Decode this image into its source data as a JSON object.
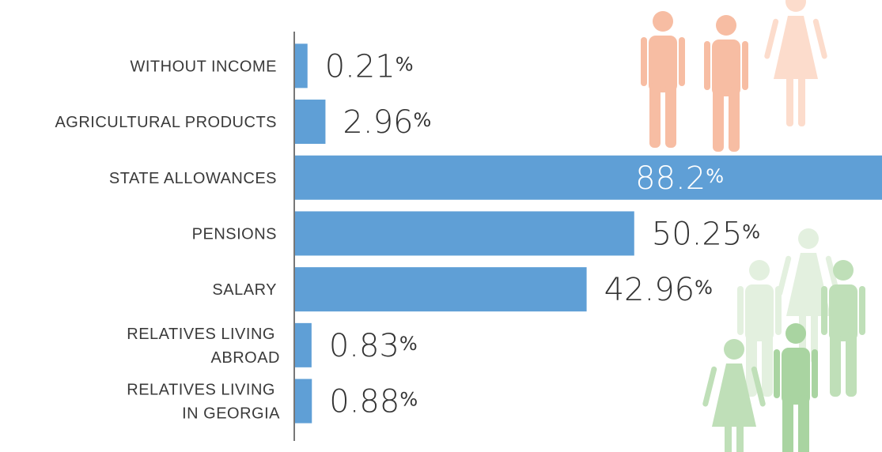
{
  "chart_data": {
    "type": "bar",
    "orientation": "horizontal",
    "categories": [
      "WITHOUT INCOME",
      "AGRICULTURAL PRODUCTS",
      "STATE ALLOWANCES",
      "PENSIONS",
      "SALARY",
      "RELATIVES LIVING\nABROAD",
      "RELATIVES LIVING\nIN GEORGIA"
    ],
    "values": [
      0.21,
      2.96,
      88.2,
      50.25,
      42.96,
      0.83,
      0.88
    ],
    "value_labels": [
      "0.21%",
      "2.96%",
      "88.2%",
      "50.25%",
      "42.96%",
      "0.83%",
      "0.88%"
    ],
    "color": "#5f9fd6"
  }
}
